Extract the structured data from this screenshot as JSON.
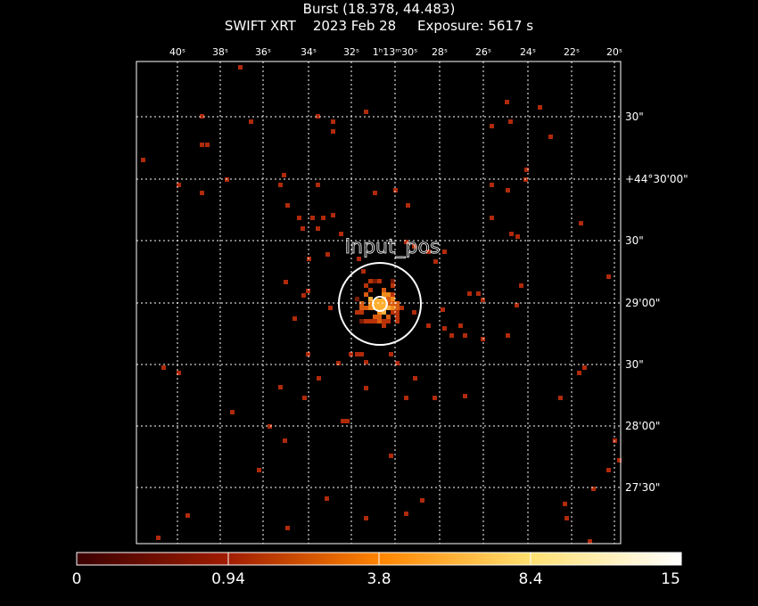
{
  "header": {
    "line1": "Burst (18.378, 44.483)",
    "line2": "SWIFT XRT    2023 Feb 28     Exposure: 5617 s"
  },
  "top_axis": [
    "40ˢ",
    "38ˢ",
    "36ˢ",
    "34ˢ",
    "32ˢ",
    "1ʰ13ᵐ30ˢ",
    "28ˢ",
    "26ˢ",
    "24ˢ",
    "22ˢ",
    "20ˢ"
  ],
  "right_axis": [
    "30\"",
    "+44°30'00\"",
    "30\"",
    "29'00\"",
    "30\"",
    "28'00\"",
    "27'30\""
  ],
  "source": {
    "label": "Input_pos"
  },
  "colorbar": {
    "ticks": [
      "0",
      "0.94",
      "3.8",
      "8.4",
      "15"
    ],
    "stops": [
      "#3a0000",
      "#a01c00",
      "#ff8400",
      "#ffe070",
      "#ffffff"
    ]
  }
}
